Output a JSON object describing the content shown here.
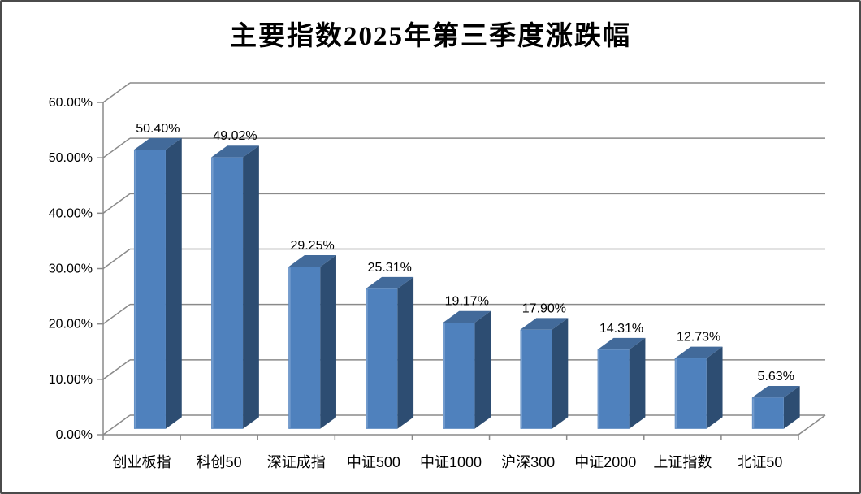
{
  "chart_data": {
    "type": "bar",
    "style": "3d-column",
    "title": "主要指数2025年第三季度涨跌幅",
    "categories": [
      "创业板指",
      "科创50",
      "深证成指",
      "中证500",
      "中证1000",
      "沪深300",
      "中证2000",
      "上证指数",
      "北证50"
    ],
    "values": [
      50.4,
      49.02,
      29.25,
      25.31,
      19.17,
      17.9,
      14.31,
      12.73,
      5.63
    ],
    "data_labels": [
      "50.40%",
      "49.02%",
      "29.25%",
      "25.31%",
      "19.17%",
      "17.90%",
      "14.31%",
      "12.73%",
      "5.63%"
    ],
    "xlabel": "",
    "ylabel": "",
    "ylim": [
      0,
      60
    ],
    "y_tick_values": [
      60,
      50,
      40,
      30,
      20,
      10,
      0
    ],
    "y_tick_labels": [
      "60.00%",
      "50.00%",
      "40.00%",
      "30.00%",
      "20.00%",
      "10.00%",
      "0.00%"
    ],
    "grid": true,
    "legend": false,
    "colors": {
      "bar_front": "#4f81bd",
      "bar_top": "#426a9a",
      "bar_side": "#2d4d72",
      "bar_highlight": "#7da2d1",
      "grid": "#8a8a8a",
      "axis": "#8a8a8a",
      "text": "#000000",
      "background": "#ffffff"
    }
  }
}
